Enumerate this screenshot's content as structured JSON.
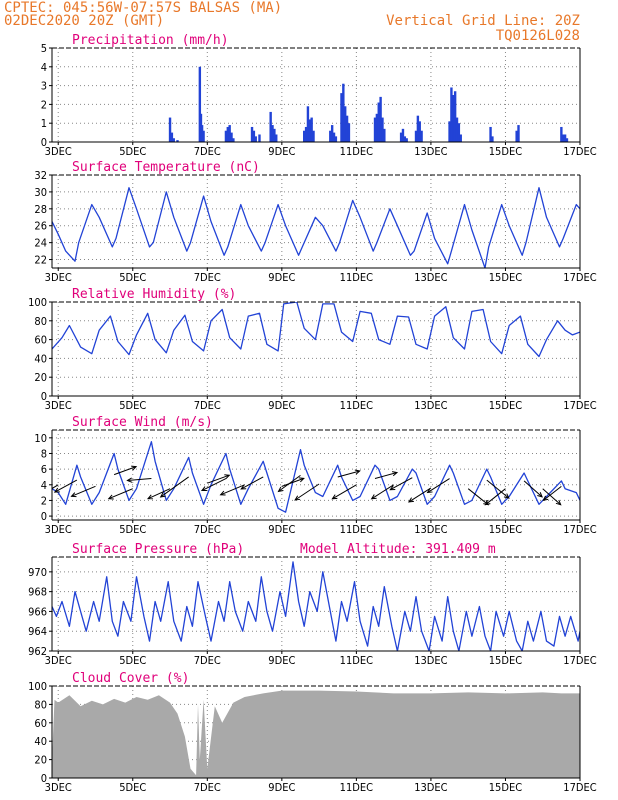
{
  "header": {
    "line1": "CPTEC:  045:56W-07:57S  BALSAS (MA)",
    "line2": "02DEC2020 20Z (GMT)",
    "right1": "Vertical Grid Line: 20Z",
    "right2": "TQ0126L028"
  },
  "colors": {
    "header": "#e8782a",
    "title": "#e0007a",
    "line": "#2243d6",
    "bar": "#2243d6",
    "cloud": "#a9a9a9",
    "grid": "#888888"
  },
  "x_axis": {
    "start_day": 2.833,
    "end_day": 17.0,
    "ticks": [
      {
        "day": 3,
        "label": "3DEC"
      },
      {
        "day": 5,
        "label": "5DEC"
      },
      {
        "day": 7,
        "label": "7DEC"
      },
      {
        "day": 9,
        "label": "9DEC"
      },
      {
        "day": 11,
        "label": "11DEC"
      },
      {
        "day": 13,
        "label": "13DEC"
      },
      {
        "day": 15,
        "label": "15DEC"
      },
      {
        "day": 17,
        "label": "17DEC"
      }
    ]
  },
  "chart_data": [
    {
      "id": "precip",
      "type": "bar",
      "title": "Precipitation (mm/h)",
      "ylim": [
        0,
        5
      ],
      "yticks": [
        0,
        1,
        2,
        3,
        4,
        5
      ],
      "grid": true,
      "x": [
        6.0,
        6.05,
        6.1,
        6.2,
        6.8,
        6.83,
        6.86,
        6.9,
        7.5,
        7.55,
        7.6,
        7.65,
        7.7,
        8.2,
        8.25,
        8.3,
        8.4,
        8.7,
        8.75,
        8.8,
        8.85,
        9.6,
        9.65,
        9.7,
        9.75,
        9.8,
        9.85,
        10.3,
        10.35,
        10.4,
        10.45,
        10.6,
        10.65,
        10.7,
        10.75,
        10.8,
        11.5,
        11.55,
        11.6,
        11.65,
        11.7,
        11.75,
        12.2,
        12.25,
        12.3,
        12.35,
        12.6,
        12.65,
        12.7,
        12.75,
        13.5,
        13.55,
        13.6,
        13.65,
        13.7,
        13.75,
        13.8,
        14.6,
        14.65,
        15.3,
        15.35,
        16.5,
        16.55,
        16.6,
        16.65
      ],
      "values": [
        1.3,
        0.5,
        0.2,
        0.1,
        4.0,
        1.5,
        0.9,
        0.6,
        0.6,
        0.8,
        0.9,
        0.5,
        0.2,
        0.8,
        0.6,
        0.3,
        0.4,
        1.6,
        0.9,
        0.7,
        0.4,
        0.6,
        0.8,
        1.9,
        1.2,
        1.3,
        0.6,
        0.6,
        0.9,
        0.5,
        0.3,
        2.6,
        3.1,
        1.9,
        1.4,
        1.0,
        1.3,
        1.5,
        2.1,
        2.4,
        1.3,
        0.7,
        0.5,
        0.7,
        0.3,
        0.2,
        0.6,
        1.4,
        1.1,
        0.6,
        1.1,
        2.9,
        2.5,
        2.7,
        1.3,
        1.0,
        0.4,
        0.8,
        0.3,
        0.6,
        0.9,
        0.8,
        0.4,
        0.4,
        0.2
      ]
    },
    {
      "id": "temp",
      "type": "line",
      "title": "Surface Temperature (nC)",
      "ylim": [
        21,
        32
      ],
      "yticks": [
        22,
        24,
        26,
        28,
        30,
        32
      ],
      "grid": true,
      "x": [
        2.833,
        3.0,
        3.2,
        3.45,
        3.55,
        3.9,
        4.1,
        4.45,
        4.55,
        4.9,
        5.1,
        5.45,
        5.55,
        5.9,
        6.1,
        6.45,
        6.55,
        6.9,
        7.1,
        7.45,
        7.55,
        7.9,
        8.1,
        8.45,
        8.55,
        8.9,
        9.1,
        9.45,
        9.55,
        9.9,
        10.1,
        10.45,
        10.55,
        10.9,
        11.1,
        11.45,
        11.55,
        11.9,
        12.1,
        12.45,
        12.55,
        12.9,
        13.1,
        13.45,
        13.55,
        13.9,
        14.1,
        14.45,
        14.55,
        14.9,
        15.1,
        15.45,
        15.55,
        15.9,
        16.1,
        16.45,
        16.55,
        16.9,
        17.0
      ],
      "values": [
        26.5,
        25.0,
        23.0,
        21.8,
        24.0,
        28.5,
        27.0,
        23.5,
        24.5,
        30.5,
        28.0,
        23.5,
        24.0,
        30.0,
        27.0,
        23.0,
        24.0,
        29.5,
        26.5,
        22.5,
        23.5,
        28.5,
        26.0,
        23.0,
        24.0,
        28.5,
        26.0,
        22.5,
        23.5,
        27.0,
        26.0,
        23.0,
        24.0,
        29.0,
        27.0,
        23.0,
        24.0,
        28.0,
        26.0,
        22.5,
        23.0,
        27.5,
        24.5,
        21.5,
        23.0,
        28.5,
        25.5,
        21.0,
        23.5,
        28.5,
        26.0,
        22.5,
        24.0,
        30.5,
        27.0,
        23.5,
        24.5,
        28.5,
        28.0
      ]
    },
    {
      "id": "rh",
      "type": "line",
      "title": "Relative Humidity (%)",
      "ylim": [
        0,
        100
      ],
      "yticks": [
        0,
        20,
        40,
        60,
        80,
        100
      ],
      "grid": true,
      "x": [
        2.833,
        3.1,
        3.3,
        3.6,
        3.9,
        4.1,
        4.4,
        4.6,
        4.9,
        5.1,
        5.4,
        5.6,
        5.9,
        6.1,
        6.4,
        6.6,
        6.9,
        7.1,
        7.4,
        7.6,
        7.9,
        8.1,
        8.4,
        8.6,
        8.9,
        9.05,
        9.4,
        9.6,
        9.9,
        10.1,
        10.4,
        10.6,
        10.9,
        11.1,
        11.4,
        11.6,
        11.9,
        12.1,
        12.4,
        12.6,
        12.9,
        13.1,
        13.4,
        13.6,
        13.9,
        14.1,
        14.4,
        14.6,
        14.9,
        15.1,
        15.4,
        15.6,
        15.9,
        16.1,
        16.4,
        16.6,
        16.8,
        17.0
      ],
      "values": [
        50,
        62,
        75,
        52,
        45,
        70,
        85,
        58,
        44,
        65,
        88,
        60,
        46,
        70,
        86,
        58,
        48,
        80,
        92,
        62,
        50,
        85,
        88,
        55,
        48,
        98,
        100,
        72,
        60,
        98,
        98,
        68,
        58,
        90,
        88,
        60,
        55,
        85,
        84,
        55,
        50,
        85,
        95,
        62,
        50,
        90,
        92,
        58,
        45,
        75,
        85,
        55,
        42,
        60,
        80,
        70,
        65,
        68
      ]
    },
    {
      "id": "wind",
      "type": "line",
      "title": "Surface Wind (m/s)",
      "ylim": [
        -0.5,
        11
      ],
      "yticks": [
        0,
        2,
        4,
        6,
        8,
        10
      ],
      "grid": true,
      "x": [
        2.833,
        3.0,
        3.2,
        3.5,
        3.6,
        3.9,
        4.1,
        4.5,
        4.6,
        4.9,
        5.1,
        5.5,
        5.6,
        5.9,
        6.1,
        6.5,
        6.6,
        6.9,
        7.1,
        7.5,
        7.6,
        7.9,
        8.1,
        8.5,
        8.6,
        8.9,
        9.1,
        9.5,
        9.6,
        9.9,
        10.1,
        10.5,
        10.6,
        10.9,
        11.1,
        11.5,
        11.6,
        11.9,
        12.1,
        12.5,
        12.6,
        12.9,
        13.1,
        13.5,
        13.6,
        13.9,
        14.1,
        14.5,
        14.6,
        14.9,
        15.1,
        15.5,
        15.6,
        15.9,
        16.1,
        16.5,
        16.6,
        16.9,
        17.0
      ],
      "values": [
        3.5,
        3.0,
        1.5,
        6.5,
        5.0,
        1.5,
        3.0,
        8.0,
        6.0,
        2.0,
        3.5,
        9.5,
        7.0,
        2.0,
        3.5,
        7.5,
        5.5,
        1.5,
        4.0,
        8.0,
        6.0,
        1.5,
        3.5,
        7.0,
        5.5,
        1.0,
        0.5,
        8.5,
        6.5,
        3.0,
        2.5,
        6.5,
        5.0,
        2.0,
        2.5,
        6.5,
        6.0,
        2.0,
        2.5,
        6.0,
        5.5,
        1.5,
        2.5,
        6.5,
        5.5,
        1.5,
        2.0,
        6.0,
        5.0,
        1.5,
        2.5,
        5.5,
        4.5,
        1.5,
        2.5,
        4.5,
        3.5,
        3.0,
        2.0
      ],
      "vectors": {
        "x": [
          3.0,
          3.5,
          4.0,
          4.5,
          5.0,
          5.5,
          6.0,
          6.5,
          7.0,
          7.5,
          8.0,
          8.5,
          9.0,
          9.5,
          10.0,
          10.5,
          11.0,
          11.5,
          12.0,
          12.5,
          13.0,
          13.5,
          14.0,
          14.5,
          15.0,
          15.5,
          16.0,
          16.5
        ],
        "y": [
          4.0,
          4.6,
          3.8,
          5.3,
          3.5,
          4.8,
          3.5,
          5.0,
          4.2,
          4.8,
          4.0,
          5.0,
          3.8,
          5.2,
          4.1,
          5.0,
          4.0,
          4.8,
          4.0,
          4.9,
          3.6,
          4.8,
          3.5,
          4.6,
          3.5,
          4.5,
          3.5,
          3.8
        ],
        "dx": [
          -20,
          -22,
          -24,
          22,
          -24,
          -24,
          -22,
          -28,
          22,
          -24,
          -24,
          -22,
          22,
          -22,
          -24,
          22,
          -24,
          22,
          -22,
          -22,
          -22,
          -22,
          20,
          22,
          -20,
          18,
          18,
          -18
        ],
        "dy": [
          12,
          12,
          10,
          -8,
          10,
          2,
          10,
          20,
          -8,
          12,
          10,
          12,
          -8,
          16,
          16,
          -6,
          14,
          -6,
          14,
          12,
          14,
          14,
          16,
          18,
          16,
          16,
          16,
          14
        ]
      }
    },
    {
      "id": "pressure",
      "type": "line",
      "title": "Surface Pressure (hPa)",
      "annotation": "Model Altitude: 391.409 m",
      "ylim": [
        962,
        971.5
      ],
      "yticks": [
        962,
        964,
        966,
        968,
        970
      ],
      "grid": true,
      "x": [
        2.833,
        2.95,
        3.1,
        3.3,
        3.45,
        3.6,
        3.75,
        3.95,
        4.1,
        4.3,
        4.45,
        4.6,
        4.75,
        4.95,
        5.1,
        5.3,
        5.45,
        5.6,
        5.75,
        5.95,
        6.1,
        6.3,
        6.45,
        6.6,
        6.75,
        6.95,
        7.1,
        7.3,
        7.45,
        7.6,
        7.75,
        7.95,
        8.1,
        8.3,
        8.45,
        8.6,
        8.75,
        8.95,
        9.1,
        9.3,
        9.45,
        9.6,
        9.75,
        9.95,
        10.1,
        10.3,
        10.45,
        10.6,
        10.75,
        10.95,
        11.1,
        11.3,
        11.45,
        11.6,
        11.75,
        11.95,
        12.1,
        12.3,
        12.45,
        12.6,
        12.75,
        12.95,
        13.1,
        13.3,
        13.45,
        13.6,
        13.75,
        13.95,
        14.1,
        14.3,
        14.45,
        14.6,
        14.75,
        14.95,
        15.1,
        15.3,
        15.45,
        15.6,
        15.75,
        15.95,
        16.1,
        16.3,
        16.45,
        16.6,
        16.75,
        16.95,
        17.0
      ],
      "values": [
        966.5,
        965.5,
        967.0,
        964.5,
        968.0,
        966.0,
        964.0,
        967.0,
        965.0,
        969.5,
        965.0,
        963.5,
        967.0,
        965.0,
        969.5,
        965.5,
        963.0,
        967.0,
        965.0,
        969.0,
        965.0,
        963.0,
        966.5,
        964.5,
        969.0,
        965.5,
        963.0,
        967.0,
        965.0,
        969.0,
        966.0,
        964.0,
        967.0,
        965.0,
        969.5,
        966.0,
        964.0,
        968.0,
        965.5,
        971.0,
        967.0,
        964.5,
        968.0,
        966.0,
        970.0,
        966.0,
        963.0,
        967.0,
        965.0,
        969.0,
        965.0,
        962.5,
        966.5,
        964.5,
        968.5,
        964.5,
        962.0,
        966.0,
        964.0,
        967.5,
        964.0,
        962.0,
        965.5,
        963.0,
        967.5,
        964.0,
        962.0,
        966.0,
        963.5,
        966.5,
        963.5,
        962.0,
        966.0,
        963.5,
        966.0,
        963.0,
        962.0,
        965.0,
        963.0,
        966.0,
        963.0,
        962.5,
        965.5,
        963.5,
        965.5,
        963.0,
        964.0
      ]
    },
    {
      "id": "cloud",
      "type": "area",
      "title": "Cloud Cover (%)",
      "ylim": [
        0,
        100
      ],
      "yticks": [
        0,
        20,
        40,
        60,
        80,
        100
      ],
      "grid": true,
      "x": [
        2.833,
        2.9,
        3.0,
        3.3,
        3.6,
        3.9,
        4.2,
        4.5,
        4.8,
        5.1,
        5.4,
        5.7,
        6.0,
        6.2,
        6.4,
        6.55,
        6.7,
        6.75,
        6.8,
        6.9,
        7.0,
        7.2,
        7.4,
        7.7,
        8.0,
        8.5,
        9.0,
        10.0,
        11.0,
        12.0,
        13.0,
        14.0,
        15.0,
        16.0,
        16.5,
        17.0
      ],
      "values": [
        20,
        85,
        82,
        90,
        78,
        84,
        80,
        86,
        82,
        88,
        85,
        90,
        82,
        70,
        45,
        10,
        3,
        80,
        20,
        85,
        10,
        78,
        60,
        82,
        88,
        92,
        95,
        95,
        94,
        92,
        92,
        93,
        92,
        93,
        92,
        92
      ]
    }
  ]
}
